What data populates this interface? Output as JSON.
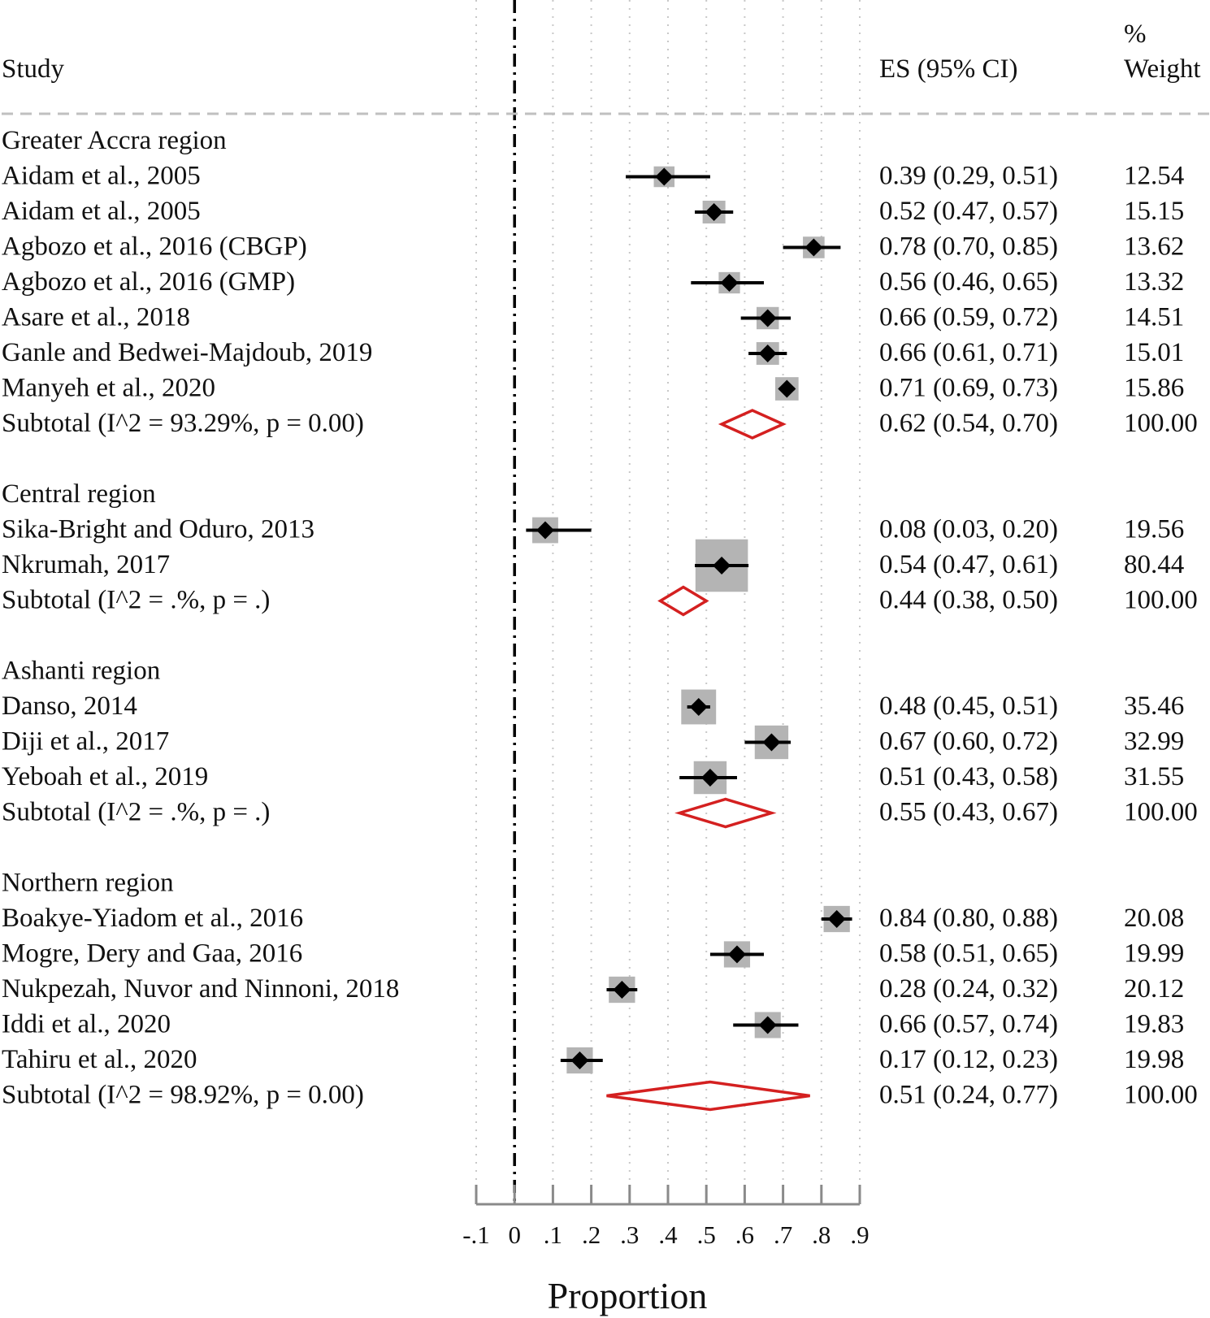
{
  "chart_data": {
    "type": "forest",
    "headers": {
      "study": "Study",
      "es": "ES (95% CI)",
      "weight_line1": "%",
      "weight_line2": "Weight"
    },
    "xlabel": "Proportion",
    "xlim": [
      -0.1,
      0.9
    ],
    "ticks": [
      {
        "value": -0.1,
        "label": "-.1"
      },
      {
        "value": 0.0,
        "label": "0"
      },
      {
        "value": 0.1,
        "label": ".1"
      },
      {
        "value": 0.2,
        "label": ".2"
      },
      {
        "value": 0.3,
        "label": ".3"
      },
      {
        "value": 0.4,
        "label": ".4"
      },
      {
        "value": 0.5,
        "label": ".5"
      },
      {
        "value": 0.6,
        "label": ".6"
      },
      {
        "value": 0.7,
        "label": ".7"
      },
      {
        "value": 0.8,
        "label": ".8"
      },
      {
        "value": 0.9,
        "label": ".9"
      }
    ],
    "null_line": 0,
    "groups": [
      {
        "name": "Greater Accra region",
        "studies": [
          {
            "label": "Aidam et al., 2005",
            "es": 0.39,
            "lo": 0.29,
            "hi": 0.51,
            "es_text": "0.39 (0.29, 0.51)",
            "weight": "12.54"
          },
          {
            "label": "Aidam et al., 2005",
            "es": 0.52,
            "lo": 0.47,
            "hi": 0.57,
            "es_text": "0.52 (0.47, 0.57)",
            "weight": "15.15"
          },
          {
            "label": "Agbozo et al., 2016 (CBGP)",
            "es": 0.78,
            "lo": 0.7,
            "hi": 0.85,
            "es_text": "0.78 (0.70, 0.85)",
            "weight": "13.62"
          },
          {
            "label": "Agbozo et al., 2016 (GMP)",
            "es": 0.56,
            "lo": 0.46,
            "hi": 0.65,
            "es_text": "0.56 (0.46, 0.65)",
            "weight": "13.32"
          },
          {
            "label": "Asare et al., 2018",
            "es": 0.66,
            "lo": 0.59,
            "hi": 0.72,
            "es_text": "0.66 (0.59, 0.72)",
            "weight": "14.51"
          },
          {
            "label": "Ganle and Bedwei-Majdoub, 2019",
            "es": 0.66,
            "lo": 0.61,
            "hi": 0.71,
            "es_text": "0.66 (0.61, 0.71)",
            "weight": "15.01"
          },
          {
            "label": "Manyeh et al., 2020",
            "es": 0.71,
            "lo": 0.69,
            "hi": 0.73,
            "es_text": "0.71 (0.69, 0.73)",
            "weight": "15.86"
          }
        ],
        "subtotal": {
          "label": "Subtotal  (I^2 = 93.29%, p = 0.00)",
          "es": 0.62,
          "lo": 0.54,
          "hi": 0.7,
          "es_text": "0.62 (0.54, 0.70)",
          "weight": "100.00"
        }
      },
      {
        "name": "Central region",
        "studies": [
          {
            "label": "Sika-Bright and Oduro, 2013",
            "es": 0.08,
            "lo": 0.03,
            "hi": 0.2,
            "es_text": "0.08 (0.03, 0.20)",
            "weight": "19.56"
          },
          {
            "label": "Nkrumah, 2017",
            "es": 0.54,
            "lo": 0.47,
            "hi": 0.61,
            "es_text": "0.54 (0.47, 0.61)",
            "weight": "80.44"
          }
        ],
        "subtotal": {
          "label": "Subtotal  (I^2 = .%, p = .)",
          "es": 0.44,
          "lo": 0.38,
          "hi": 0.5,
          "es_text": "0.44 (0.38, 0.50)",
          "weight": "100.00"
        }
      },
      {
        "name": "Ashanti region",
        "studies": [
          {
            "label": "Danso, 2014",
            "es": 0.48,
            "lo": 0.45,
            "hi": 0.51,
            "es_text": "0.48 (0.45, 0.51)",
            "weight": "35.46"
          },
          {
            "label": "Diji et al., 2017",
            "es": 0.67,
            "lo": 0.6,
            "hi": 0.72,
            "es_text": "0.67 (0.60, 0.72)",
            "weight": "32.99"
          },
          {
            "label": "Yeboah et al., 2019",
            "es": 0.51,
            "lo": 0.43,
            "hi": 0.58,
            "es_text": "0.51 (0.43, 0.58)",
            "weight": "31.55"
          }
        ],
        "subtotal": {
          "label": "Subtotal  (I^2 = .%, p = .)",
          "es": 0.55,
          "lo": 0.43,
          "hi": 0.67,
          "es_text": "0.55 (0.43, 0.67)",
          "weight": "100.00"
        }
      },
      {
        "name": "Northern region",
        "studies": [
          {
            "label": "Boakye-Yiadom et al., 2016",
            "es": 0.84,
            "lo": 0.8,
            "hi": 0.88,
            "es_text": "0.84 (0.80, 0.88)",
            "weight": "20.08"
          },
          {
            "label": "Mogre, Dery and Gaa, 2016",
            "es": 0.58,
            "lo": 0.51,
            "hi": 0.65,
            "es_text": "0.58 (0.51, 0.65)",
            "weight": "19.99"
          },
          {
            "label": "Nukpezah, Nuvor and Ninnoni, 2018",
            "es": 0.28,
            "lo": 0.24,
            "hi": 0.32,
            "es_text": "0.28 (0.24, 0.32)",
            "weight": "20.12"
          },
          {
            "label": "Iddi et al., 2020",
            "es": 0.66,
            "lo": 0.57,
            "hi": 0.74,
            "es_text": "0.66 (0.57, 0.74)",
            "weight": "19.83"
          },
          {
            "label": "Tahiru et al., 2020",
            "es": 0.17,
            "lo": 0.12,
            "hi": 0.23,
            "es_text": "0.17 (0.12, 0.23)",
            "weight": "19.98"
          }
        ],
        "subtotal": {
          "label": "Subtotal  (I^2 = 98.92%, p = 0.00)",
          "es": 0.51,
          "lo": 0.24,
          "hi": 0.77,
          "es_text": "0.51 (0.24, 0.77)",
          "weight": "100.00"
        }
      }
    ],
    "colors": {
      "text": "#111111",
      "marker": "#000000",
      "weight_box": "#b4b4b4",
      "subtotal_diamond": "#d42020",
      "grid": "#c8c8c8",
      "axis": "#8a8a8a"
    }
  }
}
